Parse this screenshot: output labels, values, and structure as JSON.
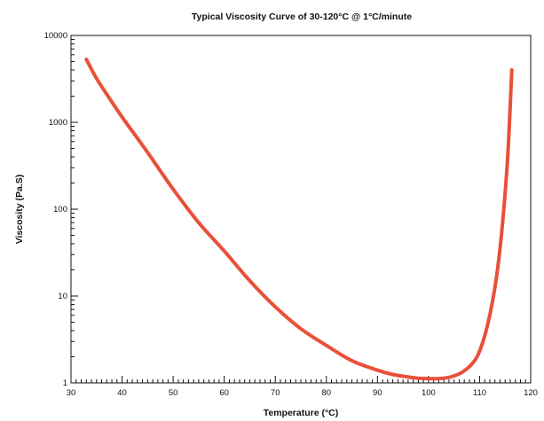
{
  "chart_data": {
    "type": "line",
    "title": "Typical Viscosity Curve of 30-120°C @ 1°C/minute",
    "xlabel": "Temperature (°C)",
    "ylabel": "Viscosity (Pa.S)",
    "xlim": [
      30,
      120
    ],
    "ylim": [
      1,
      10000
    ],
    "yscale": "log",
    "grid": false,
    "legend": "none",
    "x_ticks": [
      "30",
      "40",
      "50",
      "60",
      "70",
      "80",
      "90",
      "100",
      "110",
      "120"
    ],
    "y_ticks": [
      "1",
      "10",
      "100",
      "1000",
      "10000"
    ],
    "series": [
      {
        "color": "#e9503a",
        "x": [
          33,
          35,
          37.5,
          40,
          42.5,
          45,
          50,
          55,
          60,
          65,
          70,
          75,
          80,
          85,
          90,
          93,
          96,
          98,
          100,
          102,
          104,
          106,
          107.5,
          108.5,
          109.5,
          110.5,
          111.5,
          112.5,
          113.5,
          114.5,
          115.5,
          116.3
        ],
        "y": [
          5300,
          3200,
          1900,
          1150,
          720,
          450,
          170,
          70,
          33,
          15,
          7.5,
          4.2,
          2.7,
          1.8,
          1.4,
          1.25,
          1.17,
          1.13,
          1.12,
          1.12,
          1.16,
          1.27,
          1.45,
          1.65,
          2.0,
          2.8,
          4.5,
          8.5,
          20,
          70,
          400,
          4000
        ]
      }
    ]
  }
}
